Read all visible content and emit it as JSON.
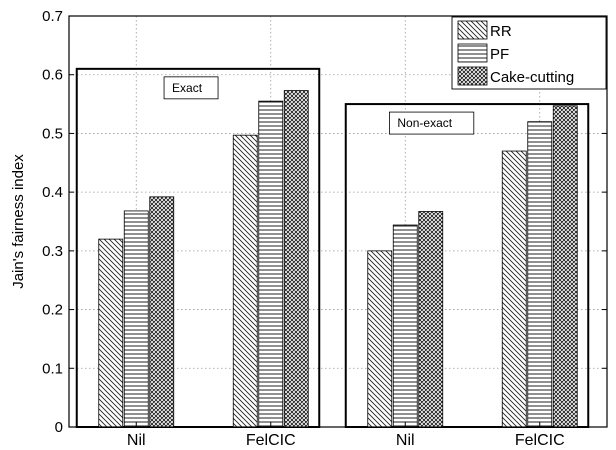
{
  "chart_data": {
    "type": "bar",
    "ylabel": "Jain's fairness index",
    "ylim": [
      0,
      0.7
    ],
    "yticks": [
      0,
      0.1,
      0.2,
      0.3,
      0.4,
      0.5,
      0.6,
      0.7
    ],
    "ytick_labels": [
      "0",
      "0.1",
      "0.2",
      "0.3",
      "0.4",
      "0.5",
      "0.6",
      "0.7"
    ],
    "grid": true,
    "legend_position": "top-right",
    "categories": [
      "Nil",
      "FelCIC",
      "Nil",
      "FelCIC"
    ],
    "series": [
      {
        "name": "RR",
        "values": [
          0.32,
          0.497,
          0.3,
          0.47
        ],
        "pattern": "diagonal"
      },
      {
        "name": "PF",
        "values": [
          0.368,
          0.555,
          0.344,
          0.52
        ],
        "pattern": "horizontal"
      },
      {
        "name": "Cake-cutting",
        "values": [
          0.392,
          0.573,
          0.367,
          0.547
        ],
        "pattern": "crosshatch"
      }
    ],
    "groups": [
      {
        "label": "Exact",
        "categories": [
          0,
          1
        ],
        "box_top": 0.61
      },
      {
        "label": "Non-exact",
        "categories": [
          2,
          3
        ],
        "box_top": 0.55
      }
    ]
  }
}
